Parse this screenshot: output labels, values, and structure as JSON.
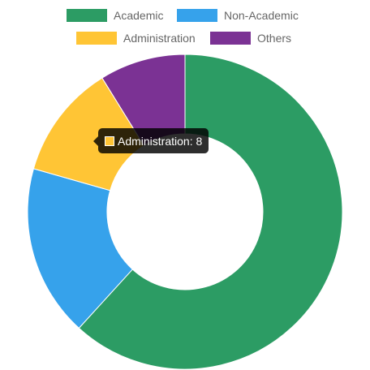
{
  "chart_data": {
    "type": "pie",
    "variant": "doughnut",
    "categories": [
      "Academic",
      "Non-Academic",
      "Administration",
      "Others"
    ],
    "values": [
      42,
      12,
      8,
      6
    ],
    "colors": [
      "#2c9c64",
      "#36a2eb",
      "#ffc535",
      "#7b3294"
    ],
    "legend_position": "top",
    "title": "",
    "tooltip": {
      "category_index": 2,
      "text": "Administration: 8"
    }
  }
}
